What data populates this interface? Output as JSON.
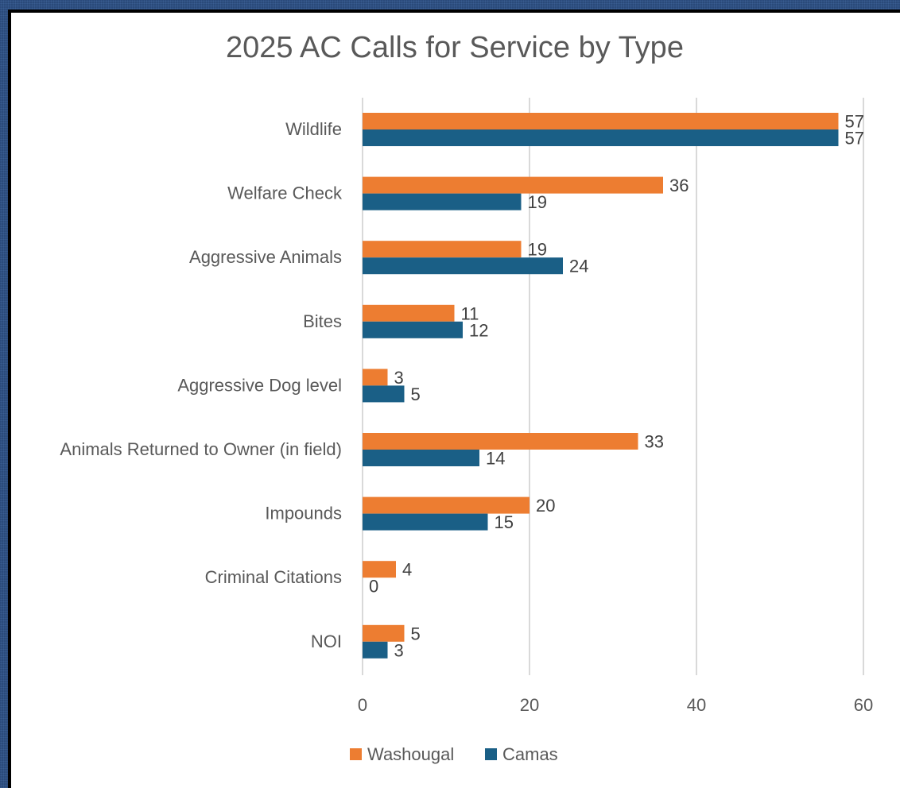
{
  "chart_data": {
    "type": "bar",
    "orientation": "horizontal",
    "title": "2025 AC Calls for Service by Type",
    "categories": [
      "Wildlife",
      "Welfare Check",
      "Aggressive Animals",
      "Bites",
      "Aggressive Dog level",
      "Animals Returned to Owner (in field)",
      "Impounds",
      "Criminal Citations",
      "NOI"
    ],
    "series": [
      {
        "name": "Washougal",
        "color": "#ed7d31",
        "values": [
          57,
          36,
          19,
          11,
          3,
          33,
          20,
          4,
          5
        ]
      },
      {
        "name": "Camas",
        "color": "#1a5f86",
        "values": [
          57,
          19,
          24,
          12,
          5,
          14,
          15,
          0,
          3
        ]
      }
    ],
    "xlim": [
      0,
      60
    ],
    "xticks": [
      0,
      20,
      40,
      60
    ],
    "grid": true,
    "legend_position": "bottom",
    "data_labels": true
  }
}
